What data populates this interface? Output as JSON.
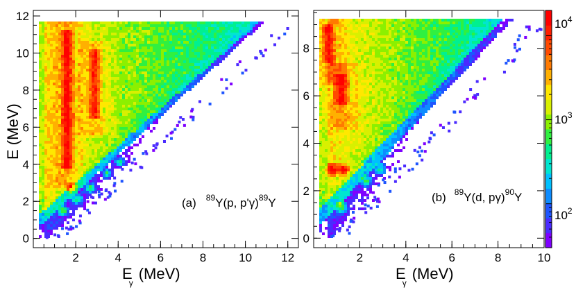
{
  "chart_data": [
    {
      "id": "a",
      "type": "heatmap",
      "annotation": {
        "label": "(a)",
        "mass1": "89",
        "reaction": "Y(p, p'γ)",
        "mass2": "89",
        "product": "Y"
      },
      "xlabel": {
        "main": "E",
        "sub": "γ",
        "unit": "(MeV)"
      },
      "ylabel": "E (MeV)",
      "xlim": [
        0,
        12.5
      ],
      "ylim": [
        -0.5,
        12.3
      ],
      "xticks": [
        2,
        4,
        6,
        8,
        10,
        12
      ],
      "yticks": [
        0,
        2,
        4,
        6,
        8,
        10,
        12
      ],
      "triangle": {
        "x_min": 0.2,
        "y_min": 0.0,
        "y_max": 11.7,
        "x_max_at_top": 11.5
      },
      "hot_columns": [
        {
          "x": 1.6,
          "y_from": 3.7,
          "y_to": 11.3
        },
        {
          "x": 2.9,
          "y_from": 6.5,
          "y_to": 10.2
        }
      ],
      "edge_hotspots": [
        [
          1.4,
          1.5
        ],
        [
          2.1,
          2.1
        ],
        [
          2.7,
          2.7
        ],
        [
          3.5,
          3.5
        ],
        [
          4.1,
          4.1
        ],
        [
          1.8,
          2.7
        ]
      ]
    },
    {
      "id": "b",
      "type": "heatmap",
      "annotation": {
        "label": "(b)",
        "mass1": "89",
        "reaction": "Y(d, pγ)",
        "mass2": "90",
        "product": "Y"
      },
      "xlabel": {
        "main": "E",
        "sub": "γ",
        "unit": "(MeV)"
      },
      "ylabel": "",
      "xlim": [
        0,
        10
      ],
      "ylim": [
        -0.4,
        9.6
      ],
      "xticks": [
        2,
        4,
        6,
        8,
        10
      ],
      "yticks": [
        0,
        2,
        4,
        6,
        8
      ],
      "triangle": {
        "x_min": 0.3,
        "y_min": 0.0,
        "y_max": 9.2,
        "x_max_at_top": 9.2
      },
      "hot_columns": [
        {
          "x": 0.6,
          "y_from": 7.4,
          "y_to": 9.0
        },
        {
          "x": 1.2,
          "y_from": 5.6,
          "y_to": 6.9
        }
      ],
      "edge_hotspots": [
        [
          1.2,
          1.3
        ],
        [
          2.3,
          2.4
        ],
        [
          2.9,
          2.9
        ],
        [
          0.8,
          2.9
        ],
        [
          1.3,
          2.9
        ]
      ]
    }
  ],
  "colorbar": {
    "scale": "log",
    "range": [
      30,
      20000
    ],
    "tick_labels": [
      {
        "base": "10",
        "exp": "4",
        "value": 10000
      },
      {
        "base": "10",
        "exp": "3",
        "value": 1000
      },
      {
        "base": "10",
        "exp": "2",
        "value": 100
      }
    ],
    "colors": [
      "#7f00ff",
      "#4a2bff",
      "#1e55ff",
      "#0d8cff",
      "#00c0ff",
      "#00e6d0",
      "#00f090",
      "#30f040",
      "#8cf000",
      "#d8f000",
      "#ffe800",
      "#ffb000",
      "#ff7a00",
      "#ff4a00",
      "#ff1e00",
      "#ff0000"
    ]
  }
}
